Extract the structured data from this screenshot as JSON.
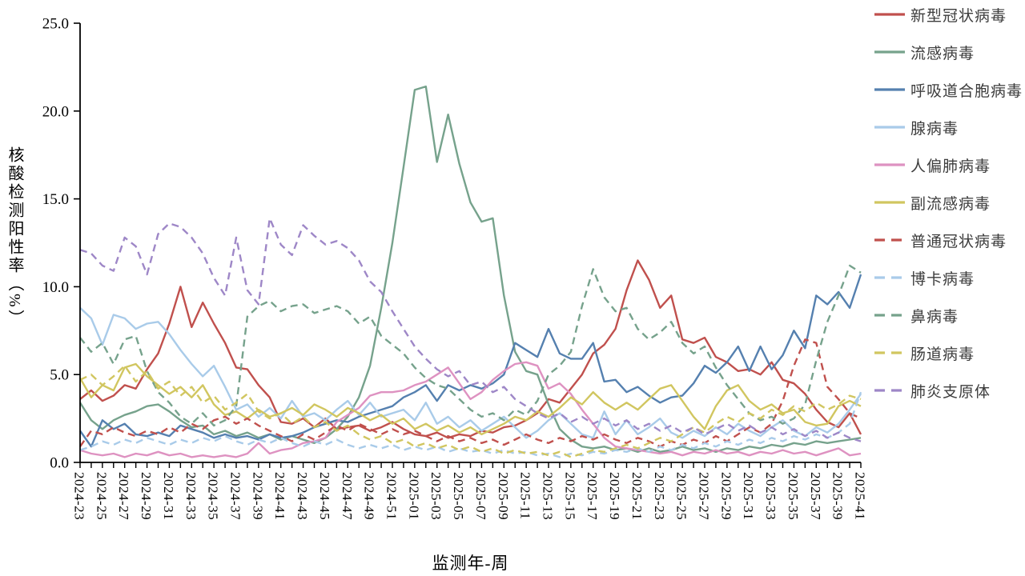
{
  "page": {
    "background": "#ffffff"
  },
  "chart_data": {
    "type": "line",
    "title": "",
    "xlabel": "监测年-周",
    "ylabel": "核酸检测阳性率（%）",
    "ylim": [
      0,
      25
    ],
    "ytick_labels": [
      "0.0",
      "5.0",
      "10.0",
      "15.0",
      "20.0",
      "25.0"
    ],
    "ytick_values": [
      0,
      5,
      10,
      15,
      20,
      25
    ],
    "grid": false,
    "legend_position": "right",
    "x_tick_every": 2,
    "x_categories": [
      "2024-23",
      "2024-24",
      "2024-25",
      "2024-26",
      "2024-27",
      "2024-28",
      "2024-29",
      "2024-30",
      "2024-31",
      "2024-32",
      "2024-33",
      "2024-34",
      "2024-35",
      "2024-36",
      "2024-37",
      "2024-38",
      "2024-39",
      "2024-40",
      "2024-41",
      "2024-42",
      "2024-43",
      "2024-44",
      "2024-45",
      "2024-46",
      "2024-47",
      "2024-48",
      "2024-49",
      "2024-50",
      "2024-51",
      "2024-52",
      "2025-01",
      "2025-02",
      "2025-03",
      "2025-04",
      "2025-05",
      "2025-06",
      "2025-07",
      "2025-08",
      "2025-09",
      "2025-10",
      "2025-11",
      "2025-12",
      "2025-13",
      "2025-14",
      "2025-15",
      "2025-16",
      "2025-17",
      "2025-18",
      "2025-19",
      "2025-20",
      "2025-21",
      "2025-22",
      "2025-23",
      "2025-24",
      "2025-25",
      "2025-26",
      "2025-27",
      "2025-28",
      "2025-29",
      "2025-30",
      "2025-31",
      "2025-32",
      "2025-33",
      "2025-34",
      "2025-35",
      "2025-36",
      "2025-37",
      "2025-38",
      "2025-39",
      "2025-40",
      "2025-41"
    ],
    "series": [
      {
        "name": "新型冠状病毒",
        "slug": "covid-19",
        "color": "#C0504D",
        "dash": false,
        "values": [
          3.6,
          4.1,
          3.5,
          3.8,
          4.4,
          4.2,
          5.3,
          6.2,
          7.9,
          10.0,
          7.7,
          9.1,
          7.9,
          6.8,
          5.4,
          5.3,
          4.4,
          3.7,
          2.3,
          2.2,
          2.5,
          2.0,
          2.5,
          1.9,
          2.0,
          2.1,
          1.8,
          2.0,
          2.3,
          1.9,
          1.6,
          1.5,
          1.7,
          1.4,
          1.6,
          1.5,
          1.8,
          1.7,
          2.0,
          2.1,
          2.4,
          2.8,
          3.6,
          3.4,
          4.2,
          5.0,
          6.2,
          6.7,
          7.6,
          9.8,
          11.5,
          10.4,
          8.8,
          9.5,
          7.0,
          6.8,
          7.1,
          6.0,
          5.7,
          5.2,
          5.3,
          5.0,
          5.7,
          4.7,
          4.5,
          3.9,
          3.0,
          2.3,
          2.0,
          2.8,
          1.6
        ]
      },
      {
        "name": "流感病毒",
        "slug": "influenza",
        "color": "#76A28C",
        "dash": false,
        "values": [
          3.4,
          2.4,
          1.9,
          2.4,
          2.7,
          2.9,
          3.2,
          3.3,
          2.9,
          2.4,
          2.0,
          2.1,
          1.6,
          1.8,
          1.5,
          1.7,
          1.4,
          1.6,
          1.3,
          1.5,
          1.3,
          1.1,
          1.4,
          1.9,
          2.6,
          3.7,
          5.5,
          8.8,
          12.5,
          16.8,
          21.2,
          21.4,
          17.1,
          19.8,
          17.0,
          14.8,
          13.7,
          13.9,
          9.5,
          6.3,
          5.2,
          5.0,
          3.3,
          1.9,
          1.3,
          0.9,
          0.8,
          0.9,
          0.7,
          0.8,
          0.6,
          0.8,
          0.6,
          0.7,
          0.9,
          0.7,
          0.8,
          0.6,
          0.8,
          0.7,
          0.9,
          0.8,
          1.0,
          0.9,
          1.1,
          1.0,
          1.2,
          1.1,
          1.2,
          1.3,
          1.4
        ]
      },
      {
        "name": "呼吸道合胞病毒",
        "slug": "rsv",
        "color": "#5580AF",
        "dash": false,
        "values": [
          1.8,
          0.9,
          2.4,
          1.9,
          2.2,
          1.6,
          1.5,
          1.7,
          1.5,
          2.1,
          1.9,
          1.7,
          1.4,
          1.6,
          1.4,
          1.5,
          1.3,
          1.6,
          1.4,
          1.5,
          1.7,
          2.0,
          2.2,
          2.4,
          2.3,
          2.6,
          2.8,
          3.0,
          3.2,
          3.7,
          4.0,
          4.4,
          3.5,
          4.4,
          4.1,
          4.4,
          4.2,
          4.5,
          5.0,
          6.8,
          6.4,
          6.0,
          7.6,
          6.2,
          5.9,
          5.9,
          6.8,
          4.6,
          4.7,
          4.0,
          4.3,
          3.8,
          3.4,
          3.7,
          3.8,
          4.5,
          5.5,
          5.1,
          5.7,
          6.6,
          5.2,
          6.6,
          5.3,
          6.1,
          7.5,
          6.5,
          9.5,
          9.0,
          9.7,
          8.8,
          10.7
        ]
      },
      {
        "name": "腺病毒",
        "slug": "adenovirus",
        "color": "#A9CBE9",
        "dash": false,
        "values": [
          8.8,
          8.2,
          6.7,
          8.4,
          8.2,
          7.6,
          7.9,
          8.0,
          7.3,
          6.4,
          5.6,
          4.9,
          5.5,
          4.3,
          3.0,
          3.3,
          2.6,
          3.1,
          2.5,
          3.5,
          2.6,
          2.8,
          2.4,
          3.0,
          3.5,
          2.7,
          3.4,
          2.6,
          2.8,
          3.0,
          2.4,
          3.4,
          2.2,
          2.6,
          2.0,
          2.4,
          1.8,
          2.2,
          2.6,
          2.0,
          1.4,
          1.8,
          2.4,
          2.8,
          2.2,
          1.6,
          1.4,
          2.9,
          1.6,
          2.4,
          1.6,
          2.0,
          2.5,
          1.7,
          1.4,
          1.8,
          1.5,
          2.0,
          1.6,
          2.2,
          1.8,
          1.5,
          2.0,
          2.4,
          1.8,
          1.5,
          2.0,
          1.7,
          2.2,
          3.0,
          3.9
        ]
      },
      {
        "name": "人偏肺病毒",
        "slug": "hmpv",
        "color": "#DE92C1",
        "dash": false,
        "values": [
          0.7,
          0.5,
          0.4,
          0.5,
          0.3,
          0.5,
          0.4,
          0.6,
          0.4,
          0.5,
          0.3,
          0.4,
          0.3,
          0.4,
          0.3,
          0.5,
          1.1,
          0.5,
          0.7,
          0.8,
          1.1,
          1.2,
          1.4,
          2.3,
          2.7,
          3.1,
          3.8,
          4.0,
          4.0,
          4.1,
          4.4,
          4.6,
          5.0,
          5.4,
          4.5,
          3.6,
          4.0,
          4.7,
          5.2,
          5.6,
          5.7,
          5.5,
          4.2,
          4.5,
          3.9,
          3.0,
          2.2,
          1.4,
          0.9,
          0.8,
          0.7,
          0.6,
          0.5,
          0.6,
          0.4,
          0.6,
          0.5,
          0.7,
          0.5,
          0.6,
          0.4,
          0.6,
          0.5,
          0.7,
          0.5,
          0.6,
          0.4,
          0.6,
          0.8,
          0.4,
          0.5
        ]
      },
      {
        "name": "副流感病毒",
        "slug": "parainfluenza",
        "color": "#D1C660",
        "dash": false,
        "values": [
          4.8,
          3.7,
          4.4,
          4.1,
          5.4,
          5.6,
          4.9,
          4.4,
          3.9,
          4.3,
          3.7,
          4.4,
          3.3,
          2.7,
          2.9,
          2.5,
          3.0,
          2.6,
          2.8,
          3.1,
          2.7,
          3.3,
          3.0,
          2.6,
          3.1,
          2.8,
          2.4,
          2.7,
          2.2,
          2.5,
          1.9,
          2.2,
          1.8,
          2.1,
          1.7,
          2.0,
          1.6,
          1.9,
          2.2,
          2.6,
          2.4,
          2.9,
          2.6,
          3.1,
          3.7,
          3.3,
          4.0,
          3.4,
          3.0,
          3.4,
          3.0,
          3.6,
          4.2,
          4.4,
          3.5,
          2.6,
          1.9,
          3.2,
          4.1,
          4.4,
          3.5,
          3.0,
          3.3,
          2.8,
          3.0,
          2.3,
          2.1,
          2.2,
          3.2,
          3.5,
          3.2
        ]
      },
      {
        "name": "普通冠状病毒",
        "slug": "seasonal-coronavirus",
        "color": "#C0504D",
        "dash": true,
        "values": [
          0.9,
          1.8,
          1.6,
          2.0,
          1.7,
          1.5,
          1.8,
          1.6,
          2.0,
          1.7,
          2.2,
          1.9,
          2.4,
          2.6,
          2.2,
          2.5,
          2.1,
          1.8,
          1.5,
          1.2,
          1.6,
          1.3,
          1.7,
          2.1,
          1.8,
          2.2,
          1.9,
          1.6,
          1.9,
          1.6,
          1.8,
          1.5,
          1.2,
          1.5,
          1.2,
          1.4,
          1.1,
          1.3,
          1.0,
          1.3,
          1.6,
          1.3,
          1.1,
          1.4,
          1.2,
          1.5,
          1.3,
          1.6,
          1.3,
          1.1,
          1.4,
          1.2,
          0.9,
          1.2,
          1.0,
          1.3,
          1.1,
          1.5,
          1.2,
          1.6,
          2.0,
          1.7,
          2.2,
          3.5,
          5.5,
          7.0,
          6.8,
          4.3,
          3.6,
          2.8,
          2.5
        ]
      },
      {
        "name": "博卡病毒",
        "slug": "bocavirus",
        "color": "#A9CBE9",
        "dash": true,
        "values": [
          0.7,
          0.9,
          1.2,
          1.0,
          1.3,
          1.1,
          1.4,
          1.2,
          1.0,
          1.3,
          1.1,
          1.4,
          1.2,
          1.5,
          1.2,
          1.0,
          1.3,
          1.1,
          1.4,
          1.1,
          0.9,
          1.2,
          1.0,
          1.3,
          1.0,
          0.8,
          1.0,
          0.8,
          1.0,
          0.7,
          0.9,
          0.7,
          0.9,
          0.6,
          0.8,
          0.6,
          0.7,
          0.5,
          0.7,
          0.5,
          0.6,
          0.4,
          0.5,
          0.3,
          0.5,
          0.4,
          0.6,
          0.5,
          0.7,
          0.6,
          0.8,
          0.6,
          0.9,
          0.7,
          1.0,
          0.8,
          1.1,
          0.9,
          1.2,
          1.0,
          1.3,
          1.1,
          1.4,
          1.2,
          1.5,
          1.3,
          1.6,
          1.4,
          1.7,
          2.2,
          4.0
        ]
      },
      {
        "name": "鼻病毒",
        "slug": "rhinovirus",
        "color": "#76A28C",
        "dash": true,
        "values": [
          7.1,
          6.3,
          6.8,
          5.6,
          7.0,
          7.2,
          5.2,
          4.0,
          3.4,
          2.6,
          2.2,
          2.8,
          2.1,
          2.4,
          3.2,
          8.3,
          8.9,
          9.2,
          8.6,
          8.9,
          9.0,
          8.5,
          8.7,
          8.9,
          8.6,
          7.9,
          8.3,
          7.2,
          6.7,
          6.2,
          5.4,
          4.8,
          4.4,
          4.2,
          3.6,
          3.0,
          2.6,
          2.8,
          2.4,
          3.0,
          2.7,
          3.5,
          5.0,
          5.5,
          6.3,
          8.9,
          11.0,
          9.4,
          8.6,
          8.8,
          7.6,
          7.0,
          7.4,
          8.0,
          6.8,
          6.2,
          6.6,
          5.4,
          4.4,
          3.6,
          2.8,
          2.4,
          2.6,
          2.2,
          2.5,
          3.3,
          5.8,
          8.0,
          9.5,
          11.2,
          10.8
        ]
      },
      {
        "name": "肠道病毒",
        "slug": "enterovirus",
        "color": "#D1C660",
        "dash": true,
        "values": [
          4.7,
          5.0,
          4.4,
          4.9,
          5.5,
          4.6,
          5.2,
          4.2,
          4.6,
          3.8,
          4.3,
          3.4,
          3.8,
          3.0,
          3.4,
          3.9,
          2.9,
          2.5,
          2.8,
          2.2,
          2.6,
          2.0,
          2.3,
          1.8,
          2.1,
          1.6,
          1.3,
          1.5,
          1.1,
          1.3,
          0.9,
          1.1,
          0.8,
          1.0,
          0.7,
          0.9,
          0.6,
          0.8,
          0.5,
          0.7,
          0.5,
          0.6,
          0.4,
          0.6,
          0.3,
          0.5,
          0.7,
          0.6,
          0.8,
          1.0,
          0.8,
          1.1,
          1.4,
          1.2,
          1.6,
          2.0,
          1.7,
          2.2,
          2.6,
          2.3,
          2.8,
          2.5,
          3.0,
          2.7,
          3.2,
          2.9,
          3.4,
          3.0,
          3.3,
          3.8,
          3.6
        ]
      },
      {
        "name": "肺炎支原体",
        "slug": "mycoplasma-pneumoniae",
        "color": "#9E87C7",
        "dash": true,
        "values": [
          12.1,
          11.9,
          11.2,
          10.9,
          12.8,
          12.3,
          10.7,
          13.0,
          13.6,
          13.4,
          12.8,
          11.9,
          10.5,
          9.5,
          12.8,
          9.8,
          9.0,
          13.9,
          12.4,
          11.8,
          13.5,
          12.9,
          12.4,
          12.6,
          12.2,
          11.5,
          10.3,
          9.7,
          8.6,
          7.6,
          6.6,
          5.9,
          5.3,
          4.9,
          5.2,
          4.4,
          4.6,
          4.0,
          4.3,
          3.6,
          3.2,
          2.8,
          2.5,
          2.8,
          2.3,
          2.6,
          2.2,
          2.5,
          2.1,
          2.4,
          1.9,
          2.2,
          1.8,
          2.1,
          1.7,
          2.0,
          1.6,
          1.9,
          2.2,
          1.8,
          2.1,
          1.7,
          2.0,
          1.6,
          1.9,
          1.5,
          1.8,
          1.4,
          1.7,
          1.4,
          1.2
        ]
      }
    ]
  }
}
